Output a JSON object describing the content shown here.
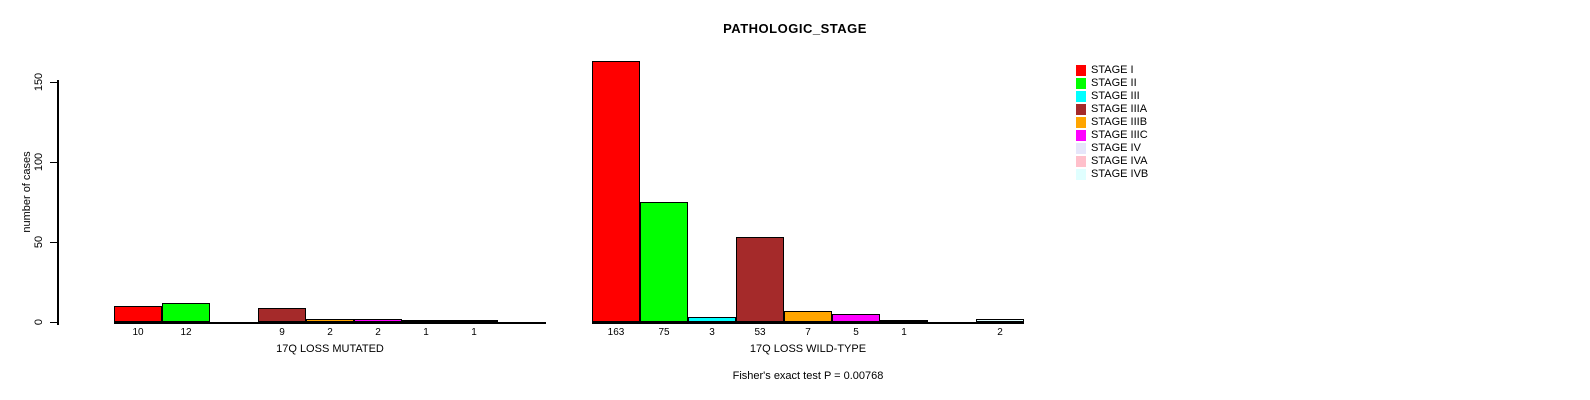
{
  "chart_data": {
    "type": "bar",
    "title": "PATHOLOGIC_STAGE",
    "ylabel": "number of cases",
    "yticks": [
      0,
      50,
      100,
      150
    ],
    "ylim": [
      0,
      170
    ],
    "grid": false,
    "legend_position": "right",
    "categories": [
      "STAGE I",
      "STAGE II",
      "STAGE III",
      "STAGE IIIA",
      "STAGE IIIB",
      "STAGE IIIC",
      "STAGE IV",
      "STAGE IVA",
      "STAGE IVB"
    ],
    "colors": [
      "#FF0000",
      "#00FF00",
      "#00FFFF",
      "#A52A2A",
      "#FFA500",
      "#FF00FF",
      "#E6E6FA",
      "#FFC0CB",
      "#E0FFFF"
    ],
    "groups": [
      {
        "label": "17Q LOSS MUTATED",
        "values": [
          10,
          12,
          0,
          9,
          2,
          2,
          1,
          1,
          0
        ]
      },
      {
        "label": "17Q LOSS WILD-TYPE",
        "values": [
          163,
          75,
          3,
          53,
          7,
          5,
          1,
          0,
          2
        ]
      }
    ],
    "annotation": "Fisher's exact test P = 0.00768"
  }
}
